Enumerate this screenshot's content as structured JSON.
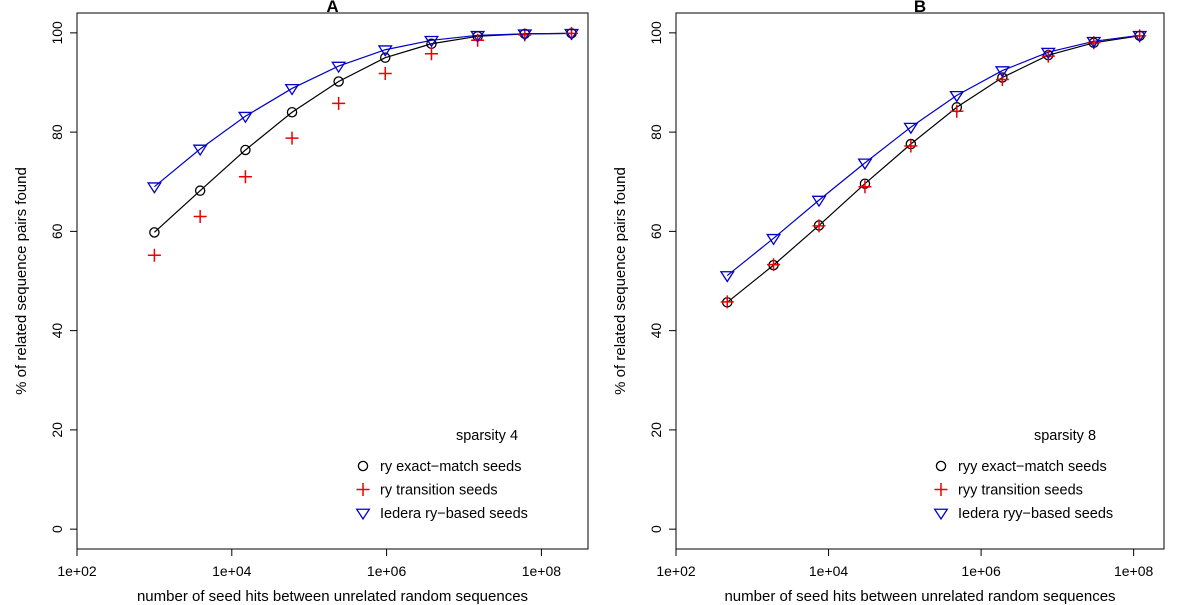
{
  "colors": {
    "black": "#000000",
    "red": "#ee0000",
    "blue": "#0000cc"
  },
  "chart_data": [
    {
      "type": "scatter",
      "title": "A",
      "xlabel": "number of seed hits between unrelated random sequences",
      "ylabel": "% of related sequence pairs found",
      "xscale": "log",
      "xlim": [
        100,
        400000000
      ],
      "ylim": [
        0,
        100
      ],
      "xticks": [
        100,
        10000,
        1000000,
        100000000
      ],
      "xtick_labels": [
        "1e+02",
        "1e+04",
        "1e+06",
        "1e+08"
      ],
      "yticks": [
        0,
        20,
        40,
        60,
        80,
        100
      ],
      "ytick_labels": [
        "0",
        "20",
        "40",
        "60",
        "80",
        "100"
      ],
      "grid": false,
      "legend_title": "sparsity 4",
      "legend_position": "bottom-right",
      "series": [
        {
          "name": "ry exact−match seeds",
          "marker": "circle",
          "color": "#000000",
          "line": true,
          "x": [
            1000,
            3900,
            15000,
            60000,
            240000,
            960000,
            3800000,
            15000000,
            61000000,
            245000000
          ],
          "y": [
            59.8,
            68.2,
            76.4,
            84.0,
            90.2,
            95.0,
            97.8,
            99.3,
            99.8,
            99.9
          ]
        },
        {
          "name": "ry transition seeds",
          "marker": "plus",
          "color": "#ee0000",
          "line": false,
          "x": [
            1000,
            3900,
            15000,
            60000,
            240000,
            960000,
            3800000,
            15000000,
            61000000,
            245000000
          ],
          "y": [
            55.2,
            63.0,
            71.0,
            78.8,
            85.8,
            91.8,
            95.8,
            98.5,
            99.6,
            99.9
          ]
        },
        {
          "name": "Iedera ry−based seeds",
          "marker": "triangle-down",
          "color": "#0000cc",
          "line": true,
          "x": [
            1000,
            3900,
            15000,
            60000,
            240000,
            960000,
            3800000,
            15000000,
            61000000,
            245000000
          ],
          "y": [
            69.0,
            76.6,
            83.2,
            88.8,
            93.3,
            96.6,
            98.5,
            99.5,
            99.8,
            99.9
          ]
        }
      ]
    },
    {
      "type": "scatter",
      "title": "B",
      "xlabel": "number of seed hits between unrelated random sequences",
      "ylabel": "% of related sequence pairs found",
      "xscale": "log",
      "xlim": [
        100,
        250000000
      ],
      "ylim": [
        0,
        100
      ],
      "xticks": [
        100,
        10000,
        1000000,
        100000000
      ],
      "xtick_labels": [
        "1e+02",
        "1e+04",
        "1e+06",
        "1e+08"
      ],
      "yticks": [
        0,
        20,
        40,
        60,
        80,
        100
      ],
      "ytick_labels": [
        "0",
        "20",
        "40",
        "60",
        "80",
        "100"
      ],
      "grid": false,
      "legend_title": "sparsity 8",
      "legend_position": "bottom-right",
      "series": [
        {
          "name": "ryy exact−match seeds",
          "marker": "circle",
          "color": "#000000",
          "line": true,
          "x": [
            470,
            1900,
            7500,
            30000,
            120000,
            480000,
            1900000,
            7600000,
            30000000,
            120000000
          ],
          "y": [
            45.7,
            53.2,
            61.2,
            69.6,
            77.6,
            85.0,
            91.0,
            95.5,
            98.0,
            99.4
          ]
        },
        {
          "name": "ryy transition seeds",
          "marker": "plus",
          "color": "#ee0000",
          "line": false,
          "x": [
            470,
            1900,
            7500,
            30000,
            120000,
            480000,
            1900000,
            7600000,
            30000000,
            120000000
          ],
          "y": [
            45.8,
            53.3,
            61.1,
            69.0,
            77.2,
            84.2,
            90.6,
            95.3,
            98.0,
            99.4
          ]
        },
        {
          "name": "Iedera ryy−based seeds",
          "marker": "triangle-down",
          "color": "#0000cc",
          "line": true,
          "x": [
            470,
            1900,
            7500,
            30000,
            120000,
            480000,
            1900000,
            7600000,
            30000000,
            120000000
          ],
          "y": [
            51.1,
            58.6,
            66.3,
            73.8,
            81.0,
            87.4,
            92.4,
            96.1,
            98.3,
            99.5
          ]
        }
      ]
    }
  ]
}
